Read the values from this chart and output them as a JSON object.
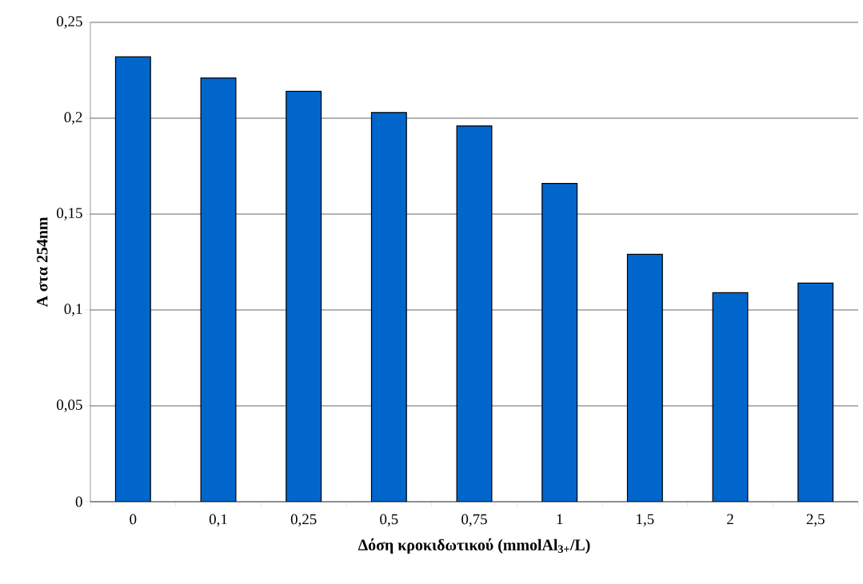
{
  "chart_data": {
    "type": "bar",
    "xlabel": "Δόση κροκιδωτικού (mmolAl$_{3+}$/L)",
    "ylabel": "A στα 254nm",
    "categories": [
      "0",
      "0,1",
      "0,25",
      "0,5",
      "0,75",
      "1",
      "1,5",
      "2",
      "2,5"
    ],
    "values": [
      0.232,
      0.221,
      0.214,
      0.203,
      0.196,
      0.166,
      0.129,
      0.109,
      0.114
    ],
    "color": "#0066cc",
    "ylim": [
      0,
      0.25
    ],
    "yticks": [
      {
        "value": 0,
        "label": "0"
      },
      {
        "value": 0.05,
        "label": "0,05"
      },
      {
        "value": 0.1,
        "label": "0,1"
      },
      {
        "value": 0.15,
        "label": "0,15"
      },
      {
        "value": 0.2,
        "label": "0,2"
      },
      {
        "value": 0.25,
        "label": "0,25"
      }
    ],
    "grid": "y"
  }
}
